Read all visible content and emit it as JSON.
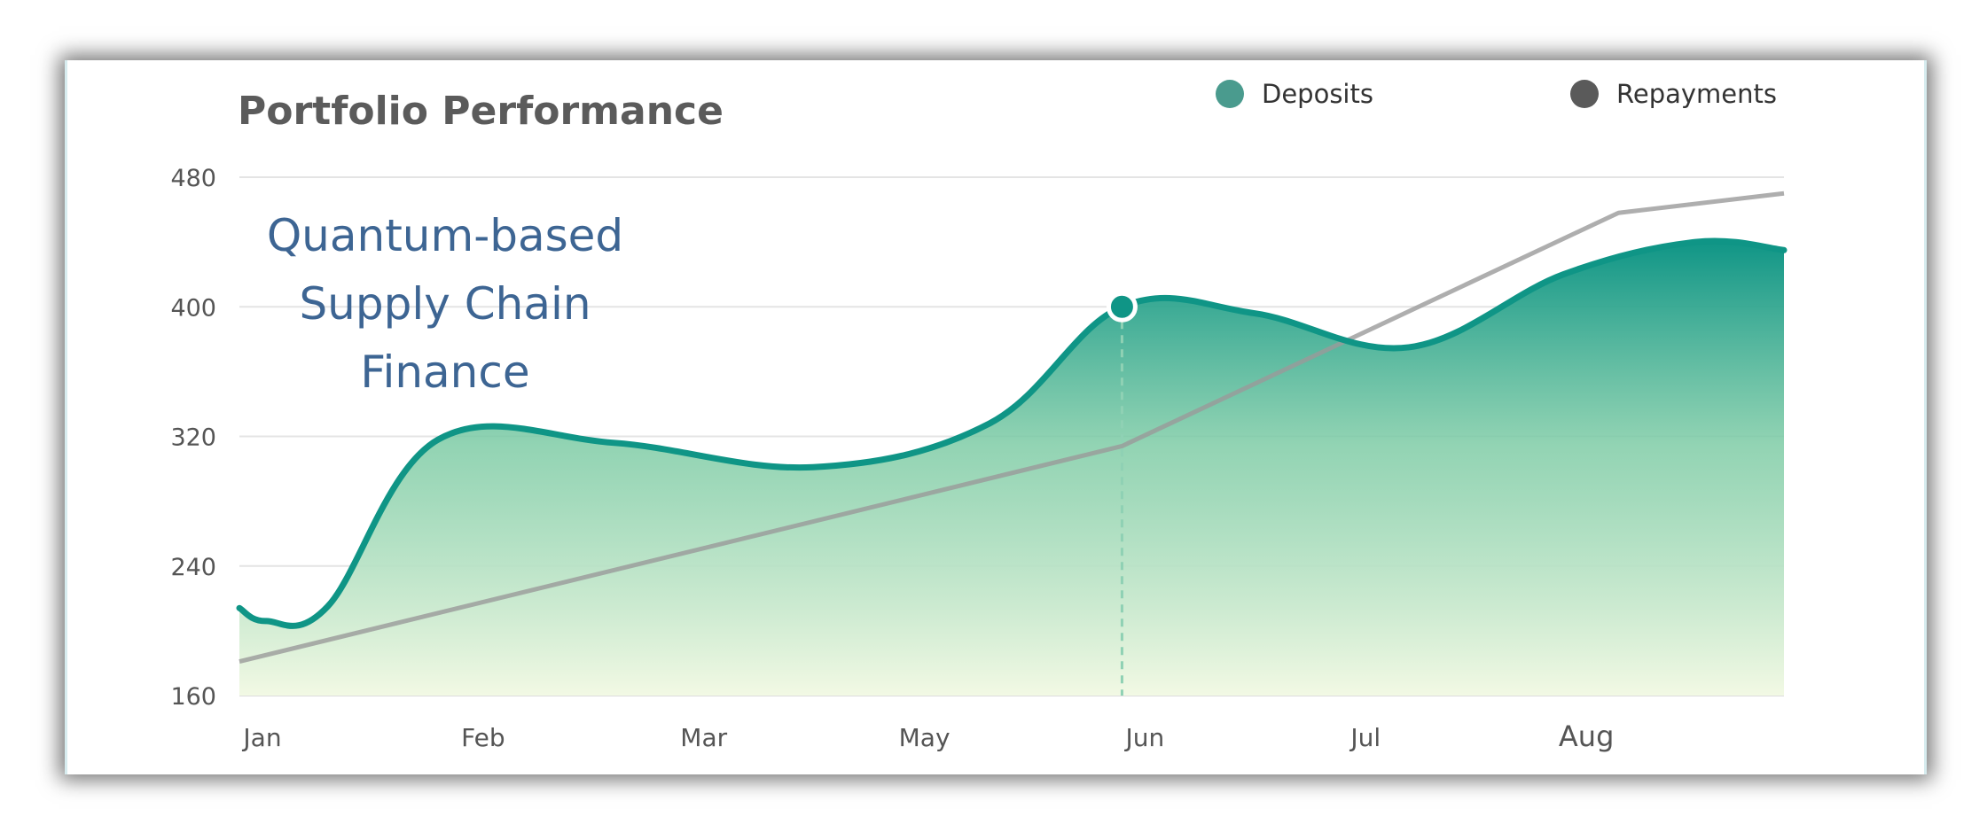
{
  "chart_data": {
    "type": "area",
    "title": "Portfolio Performance",
    "annotation_lines": [
      "Quantum-based",
      "Supply Chain",
      "Finance"
    ],
    "categories": [
      "Jan",
      "Feb",
      "Mar",
      "May",
      "Jun",
      "Jul",
      "Aug"
    ],
    "y_ticks": [
      "480",
      "400",
      "320",
      "240",
      "160"
    ],
    "ylim": [
      160,
      480
    ],
    "xlim": [
      0,
      7
    ],
    "grid": true,
    "legend_position": "top-right",
    "series": [
      {
        "name": "Deposits",
        "kind": "area",
        "color": "#0f9586",
        "x": [
          0,
          0.12,
          0.4,
          0.9,
          1.7,
          2.6,
          3.4,
          4.0,
          4.6,
          5.3,
          6.0,
          6.6,
          7.0
        ],
        "values": [
          214,
          206,
          215,
          318,
          316,
          301,
          328,
          400,
          396,
          375,
          420,
          440,
          435
        ]
      },
      {
        "name": "Repayments",
        "kind": "line",
        "color": "#9a9a9a",
        "x": [
          0,
          4.0,
          6.25,
          7.0
        ],
        "values": [
          181,
          314,
          458,
          470
        ]
      }
    ],
    "highlight": {
      "series": "Deposits",
      "x": 4.0,
      "value": 400,
      "category": "Jun"
    }
  },
  "legend": [
    {
      "label": "Deposits",
      "color": "#4a9b8e"
    },
    {
      "label": "Repayments",
      "color": "#5a5a5a"
    }
  ]
}
